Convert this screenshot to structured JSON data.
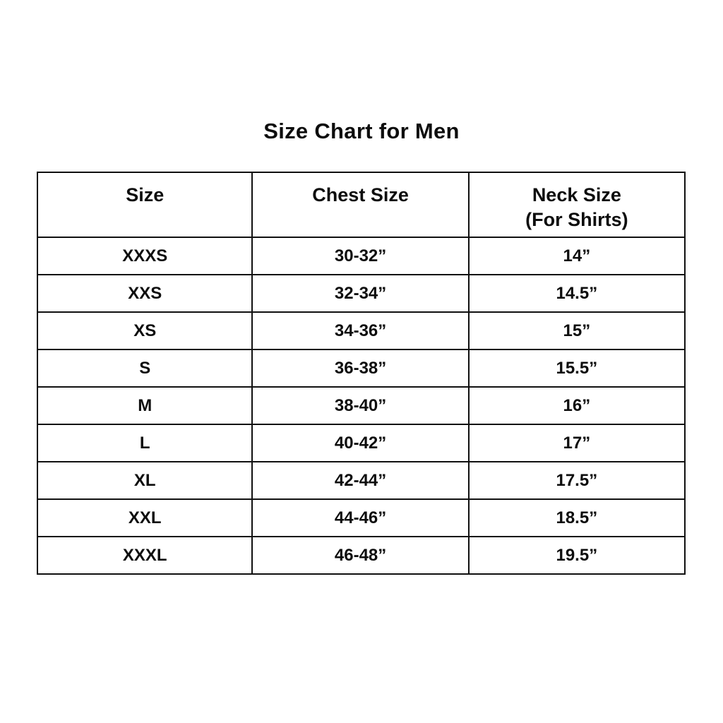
{
  "page": {
    "title": "Size Chart for Men"
  },
  "table": {
    "headers": {
      "size": "Size",
      "chest": "Chest Size",
      "neck_line1": "Neck Size",
      "neck_line2": "(For Shirts)"
    },
    "rows": [
      {
        "size": "XXXS",
        "chest": "30-32”",
        "neck": "14”"
      },
      {
        "size": "XXS",
        "chest": "32-34”",
        "neck": "14.5”"
      },
      {
        "size": "XS",
        "chest": "34-36”",
        "neck": "15”"
      },
      {
        "size": "S",
        "chest": "36-38”",
        "neck": "15.5”"
      },
      {
        "size": "M",
        "chest": "38-40”",
        "neck": "16”"
      },
      {
        "size": "L",
        "chest": "40-42”",
        "neck": "17”"
      },
      {
        "size": "XL",
        "chest": "42-44”",
        "neck": "17.5”"
      },
      {
        "size": "XXL",
        "chest": "44-46”",
        "neck": "18.5”"
      },
      {
        "size": "XXXL",
        "chest": "46-48”",
        "neck": "19.5”"
      }
    ]
  },
  "chart_data": {
    "type": "table",
    "title": "Size Chart for Men",
    "columns": [
      "Size",
      "Chest Size",
      "Neck Size (For Shirts)"
    ],
    "rows": [
      [
        "XXXS",
        "30-32”",
        "14”"
      ],
      [
        "XXS",
        "32-34”",
        "14.5”"
      ],
      [
        "XS",
        "34-36”",
        "15”"
      ],
      [
        "S",
        "36-38”",
        "15.5”"
      ],
      [
        "M",
        "38-40”",
        "16”"
      ],
      [
        "L",
        "40-42”",
        "17”"
      ],
      [
        "XL",
        "42-44”",
        "17.5”"
      ],
      [
        "XXL",
        "44-46”",
        "18.5”"
      ],
      [
        "XXXL",
        "46-48”",
        "19.5”"
      ]
    ],
    "layout": {
      "text_color": "#0d0d0d",
      "border_color": "#101010",
      "background_color": "#ffffff",
      "grid": true,
      "header_rows": 1
    }
  }
}
